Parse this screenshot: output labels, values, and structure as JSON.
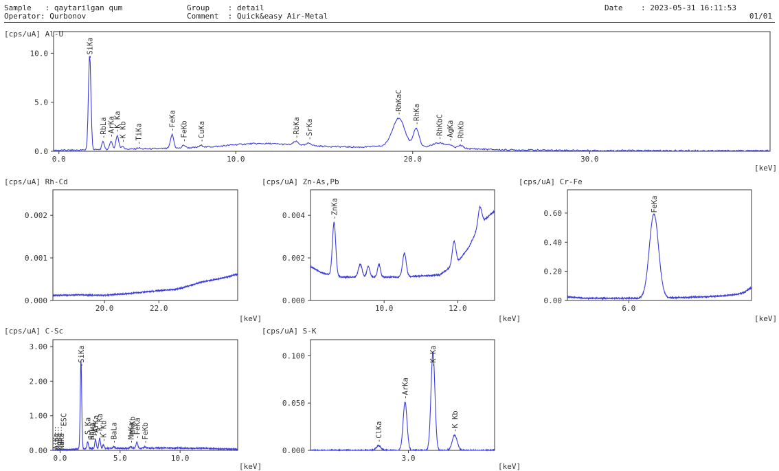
{
  "header": {
    "sample": "Sample   : qaytarilgan qum",
    "operator": "Operator: Qurbonov",
    "group": "Group    : detail",
    "comment": "Comment  : Quick&easy Air-Metal",
    "date": "Date    : 2023-05-31 16:11:53",
    "page": "01/01"
  },
  "colors": {
    "line": "#3b3bd9",
    "axis": "#333333",
    "text": "#333333",
    "dash": "#555555"
  },
  "chart_data": [
    {
      "id": "p1",
      "type": "line",
      "title": "Al-U",
      "ylabel": "[cps/uA]",
      "xlabel": "[keV]",
      "xlim": [
        -0.3,
        40.2
      ],
      "ylim": [
        0,
        12.2
      ],
      "xticks": [
        0,
        10,
        20,
        30
      ],
      "xticklabels": [
        "0.0",
        "10.0",
        "20.0",
        "30.0"
      ],
      "yticks": [
        0,
        5,
        10
      ],
      "yticklabels": [
        "0.0",
        "5.0",
        "10.0"
      ],
      "baseline": [
        [
          -0.3,
          0.1
        ],
        [
          1.2,
          0.12
        ],
        [
          3,
          0.2
        ],
        [
          5,
          0.25
        ],
        [
          7,
          0.32
        ],
        [
          9,
          0.5
        ],
        [
          10,
          0.68
        ],
        [
          11,
          0.78
        ],
        [
          12,
          0.78
        ],
        [
          13,
          0.68
        ],
        [
          15,
          0.5
        ],
        [
          17,
          0.42
        ],
        [
          18,
          0.5
        ],
        [
          23,
          0.28
        ],
        [
          25,
          0.15
        ],
        [
          30,
          0.08
        ],
        [
          40.2,
          0.05
        ]
      ],
      "peaks": [
        {
          "label": "SiKa",
          "x": 1.74,
          "h": 9.8,
          "w": 0.07
        },
        {
          "label": "RbLa",
          "x": 2.5,
          "h": 0.8,
          "w": 0.07
        },
        {
          "label": "ArKa",
          "x": 2.95,
          "h": 0.9,
          "w": 0.07
        },
        {
          "label": "K Ka",
          "x": 3.3,
          "h": 1.4,
          "w": 0.08
        },
        {
          "label": "K Kb",
          "x": 3.6,
          "h": 0.35,
          "w": 0.07
        },
        {
          "label": "TiKa",
          "x": 4.5,
          "h": 0.12,
          "w": 0.08
        },
        {
          "label": "FeKa",
          "x": 6.4,
          "h": 1.4,
          "w": 0.09
        },
        {
          "label": "FeKb",
          "x": 7.06,
          "h": 0.3,
          "w": 0.09
        },
        {
          "label": "CuKa",
          "x": 8.05,
          "h": 0.18,
          "w": 0.1
        },
        {
          "label": "RbKa",
          "x": 13.4,
          "h": 0.35,
          "w": 0.14
        },
        {
          "label": "SrKa",
          "x": 14.15,
          "h": 0.25,
          "w": 0.14
        },
        {
          "label": "RhKaC",
          "x": 19.2,
          "h": 2.9,
          "w": 0.35
        },
        {
          "label": "RhKa",
          "x": 20.2,
          "h": 1.9,
          "w": 0.16
        },
        {
          "label": "RhKbC",
          "x": 21.5,
          "h": 0.5,
          "w": 0.4
        },
        {
          "label": "AgKa",
          "x": 22.1,
          "h": 0.2,
          "w": 0.14
        },
        {
          "label": "RhKb",
          "x": 22.7,
          "h": 0.3,
          "w": 0.14
        }
      ]
    },
    {
      "id": "p2",
      "type": "line",
      "title": "Rh-Cd",
      "ylabel": "[cps/uA]",
      "xlabel": "[keV]",
      "xlim": [
        18.1,
        24.9
      ],
      "ylim": [
        0,
        0.0026
      ],
      "xticks": [
        20,
        22
      ],
      "xticklabels": [
        "20.0",
        "22.0"
      ],
      "yticks": [
        0,
        0.001,
        0.002
      ],
      "yticklabels": [
        "0.000",
        "0.001",
        "0.002"
      ],
      "baseline": [
        [
          18.1,
          0.00012
        ],
        [
          19,
          0.00013
        ],
        [
          20,
          0.00012
        ],
        [
          21,
          0.00017
        ],
        [
          22,
          0.00023
        ],
        [
          22.7,
          0.00027
        ],
        [
          23.5,
          0.00042
        ],
        [
          24.5,
          0.00055
        ],
        [
          24.9,
          0.00062
        ]
      ],
      "peaks": []
    },
    {
      "id": "p3",
      "type": "line",
      "title": "Zn-As,Pb",
      "ylabel": "[cps/uA]",
      "xlabel": "[keV]",
      "xlim": [
        8.0,
        13.0
      ],
      "ylim": [
        0,
        0.0052
      ],
      "xticks": [
        10,
        12
      ],
      "xticklabels": [
        "10.0",
        "12.0"
      ],
      "yticks": [
        0,
        0.002,
        0.004
      ],
      "yticklabels": [
        "0.000",
        "0.002",
        "0.004"
      ],
      "baseline": [
        [
          8.0,
          0.0016
        ],
        [
          8.3,
          0.0013
        ],
        [
          8.8,
          0.0011
        ],
        [
          9.5,
          0.0011
        ],
        [
          10.5,
          0.0011
        ],
        [
          11.5,
          0.0012
        ],
        [
          12,
          0.0018
        ],
        [
          12.3,
          0.0025
        ],
        [
          12.6,
          0.0036
        ],
        [
          13.0,
          0.0042
        ]
      ],
      "peaks": [
        {
          "label": "ZnKa",
          "x": 8.64,
          "h": 0.0025,
          "w": 0.045
        },
        {
          "label": "",
          "x": 9.35,
          "h": 0.0006,
          "w": 0.05
        },
        {
          "label": "",
          "x": 9.57,
          "h": 0.0005,
          "w": 0.04
        },
        {
          "label": "",
          "x": 9.86,
          "h": 0.0006,
          "w": 0.04
        },
        {
          "label": "",
          "x": 10.55,
          "h": 0.0011,
          "w": 0.05
        },
        {
          "label": "",
          "x": 11.9,
          "h": 0.0011,
          "w": 0.05
        },
        {
          "label": "",
          "x": 12.6,
          "h": 0.0008,
          "w": 0.05
        }
      ]
    },
    {
      "id": "p4",
      "type": "line",
      "title": "Cr-Fe",
      "ylabel": "[cps/uA]",
      "xlabel": "[keV]",
      "xlim": [
        5.0,
        8.0
      ],
      "ylim": [
        0,
        0.76
      ],
      "xticks": [
        6
      ],
      "xticklabels": [
        "6.0"
      ],
      "yticks": [
        0,
        0.2,
        0.4,
        0.6
      ],
      "yticklabels": [
        "0.00",
        "0.20",
        "0.40",
        "0.60"
      ],
      "baseline": [
        [
          5.0,
          0.025
        ],
        [
          5.3,
          0.015
        ],
        [
          6.5,
          0.015
        ],
        [
          7.5,
          0.03
        ],
        [
          7.8,
          0.045
        ],
        [
          7.9,
          0.06
        ],
        [
          8.0,
          0.09
        ]
      ],
      "peaks": [
        {
          "label": "FeKa",
          "x": 6.41,
          "h": 0.58,
          "w": 0.075
        }
      ]
    },
    {
      "id": "p5",
      "type": "line",
      "title": "C-Sc",
      "ylabel": "[cps/uA]",
      "xlabel": "[keV]",
      "xlim": [
        -0.6,
        14.8
      ],
      "ylim": [
        0,
        3.2
      ],
      "xticks": [
        0,
        5,
        10
      ],
      "xticklabels": [
        "0.0",
        "5.0",
        "10.0"
      ],
      "yticks": [
        0,
        1,
        2,
        3
      ],
      "yticklabels": [
        "0.00",
        "1.00",
        "2.00",
        "3.00"
      ],
      "baseline": [
        [
          -0.6,
          0
        ],
        [
          0.5,
          0.02
        ],
        [
          1,
          0.03
        ],
        [
          3,
          0.06
        ],
        [
          6,
          0.06
        ],
        [
          9,
          0.07
        ],
        [
          12,
          0.06
        ],
        [
          14.8,
          0.03
        ]
      ],
      "peaks": [
        {
          "label": "SiKa",
          "x": 1.74,
          "h": 2.55,
          "w": 0.06
        },
        {
          "label": "S Ka",
          "x": 2.3,
          "h": 0.2,
          "w": 0.06
        },
        {
          "label": "ArKa",
          "x": 2.95,
          "h": 0.25,
          "w": 0.06
        },
        {
          "label": "K Ka",
          "x": 3.3,
          "h": 0.3,
          "w": 0.06
        },
        {
          "label": "K Kb",
          "x": 3.6,
          "h": 0.1,
          "w": 0.06
        },
        {
          "label": "BaLa",
          "x": 4.47,
          "h": 0.05,
          "w": 0.06
        },
        {
          "label": "MnKa",
          "x": 5.9,
          "h": 0.05,
          "w": 0.07
        },
        {
          "label": "FeKa",
          "x": 6.4,
          "h": 0.18,
          "w": 0.07
        },
        {
          "label": "FeKb",
          "x": 7.06,
          "h": 0.04,
          "w": 0.07
        }
      ],
      "extra_labels": [
        {
          "label": "ESC",
          "x": 0.3,
          "y": 0.7
        },
        {
          "label": "RbLa",
          "x": 2.6,
          "y": 0.3
        },
        {
          "label": "PbMa",
          "x": 2.75,
          "y": 0.3
        }
      ],
      "dashed_labels": [
        {
          "label": "AlKa",
          "x": -0.4
        },
        {
          "label": "MgKa",
          "x": -0.15
        },
        {
          "label": "NaKa",
          "x": 0.1
        }
      ],
      "labels_stacked": [
        {
          "label": "MnKb",
          "x": 6.0
        }
      ]
    },
    {
      "id": "p6",
      "type": "line",
      "title": "S-K",
      "ylabel": "[cps/uA]",
      "xlabel": "[keV]",
      "xlim": [
        1.75,
        4.1
      ],
      "ylim": [
        0,
        0.117
      ],
      "xticks": [
        3
      ],
      "xticklabels": [
        "3.0"
      ],
      "yticks": [
        0,
        0.05,
        0.1
      ],
      "yticklabels": [
        "0.000",
        "0.050",
        "0.100"
      ],
      "baseline": [
        [
          1.75,
          0.0
        ],
        [
          4.1,
          0.0
        ]
      ],
      "peaks": [
        {
          "label": "ClKa",
          "x": 2.62,
          "h": 0.005,
          "w": 0.03
        },
        {
          "label": "ArKa",
          "x": 2.957,
          "h": 0.051,
          "w": 0.025
        },
        {
          "label": "K Ka",
          "x": 3.313,
          "h": 0.104,
          "w": 0.025
        },
        {
          "label": "K Kb",
          "x": 3.59,
          "h": 0.016,
          "w": 0.032
        }
      ]
    }
  ]
}
